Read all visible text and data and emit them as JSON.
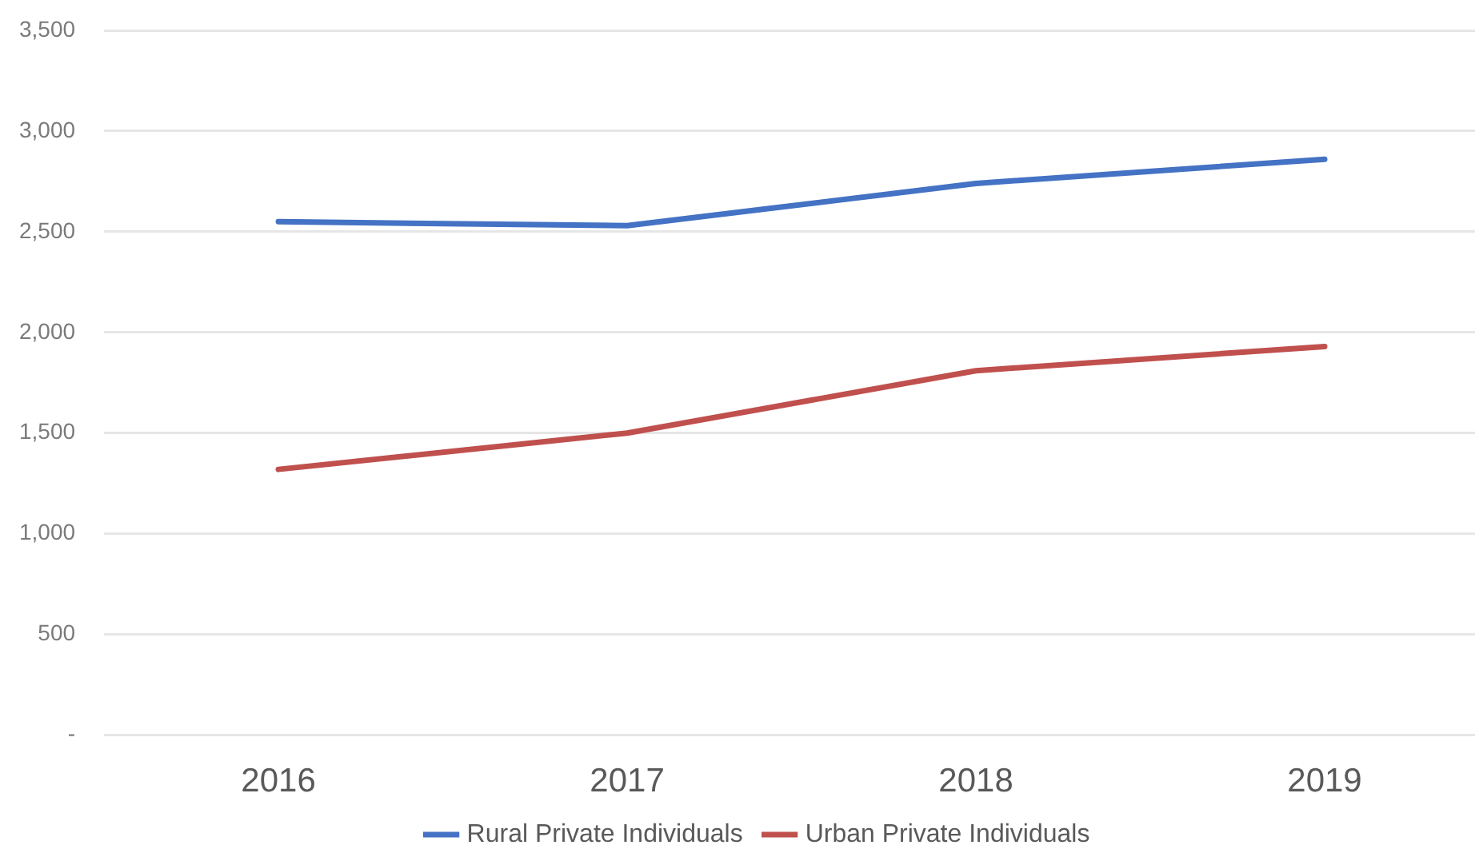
{
  "chart_data": {
    "type": "line",
    "categories": [
      "2016",
      "2017",
      "2018",
      "2019"
    ],
    "series": [
      {
        "name": "Rural Private Individuals",
        "color": "#4472c4",
        "values": [
          2550,
          2530,
          2740,
          2860
        ]
      },
      {
        "name": "Urban Private Individuals",
        "color": "#c0504d",
        "values": [
          1320,
          1500,
          1810,
          1930
        ]
      }
    ],
    "ylim": [
      0,
      3500
    ],
    "yticks": [
      {
        "value": 0,
        "label": "-"
      },
      500,
      {
        "value": 1000,
        "label": "1,000"
      },
      {
        "value": 1500,
        "label": "1,500"
      },
      {
        "value": 2000,
        "label": "2,000"
      },
      {
        "value": 2500,
        "label": "2,500"
      },
      {
        "value": 3000,
        "label": "3,000"
      },
      {
        "value": 3500,
        "label": "3,500"
      }
    ],
    "grid": "y",
    "legend": "bottom",
    "marker": "none",
    "line_style": "solid"
  }
}
